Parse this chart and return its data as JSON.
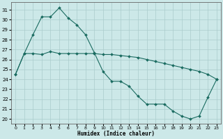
{
  "xlabel": "Humidex (Indice chaleur)",
  "ylabel": "",
  "bg_color": "#cce8e8",
  "grid_color": "#aacccc",
  "line_color": "#1a6b60",
  "line1_x": [
    0,
    1,
    2,
    3,
    4,
    5,
    6,
    7,
    8,
    9,
    10,
    11,
    12,
    13,
    14,
    15,
    16,
    17,
    18,
    19,
    20,
    21,
    22,
    23
  ],
  "line1_y": [
    24.5,
    26.6,
    28.5,
    30.3,
    30.3,
    31.2,
    30.2,
    29.5,
    28.5,
    26.7,
    24.8,
    23.8,
    23.8,
    23.3,
    22.3,
    21.5,
    21.5,
    21.5,
    20.8,
    20.3,
    20.0,
    20.3,
    22.2,
    24.0
  ],
  "line2_x": [
    0,
    1,
    2,
    3,
    4,
    5,
    6,
    7,
    8,
    9,
    10,
    11,
    12,
    13,
    14,
    15,
    16,
    17,
    18,
    19,
    20,
    21,
    22,
    23
  ],
  "line2_y": [
    24.5,
    26.6,
    26.6,
    26.5,
    26.8,
    26.6,
    26.6,
    26.6,
    26.6,
    26.6,
    26.5,
    26.5,
    26.4,
    26.3,
    26.2,
    26.0,
    25.8,
    25.6,
    25.4,
    25.2,
    25.0,
    24.8,
    24.5,
    24.0
  ],
  "ylim": [
    19.5,
    31.8
  ],
  "xlim": [
    -0.5,
    23.5
  ],
  "yticks": [
    20,
    21,
    22,
    23,
    24,
    25,
    26,
    27,
    28,
    29,
    30,
    31
  ],
  "xticks": [
    0,
    1,
    2,
    3,
    4,
    5,
    6,
    7,
    8,
    9,
    10,
    11,
    12,
    13,
    14,
    15,
    16,
    17,
    18,
    19,
    20,
    21,
    22,
    23
  ],
  "xlabel_fontsize": 5.5,
  "ytick_fontsize": 5,
  "xtick_fontsize": 4.5,
  "marker_size": 2.0,
  "linewidth": 0.8
}
